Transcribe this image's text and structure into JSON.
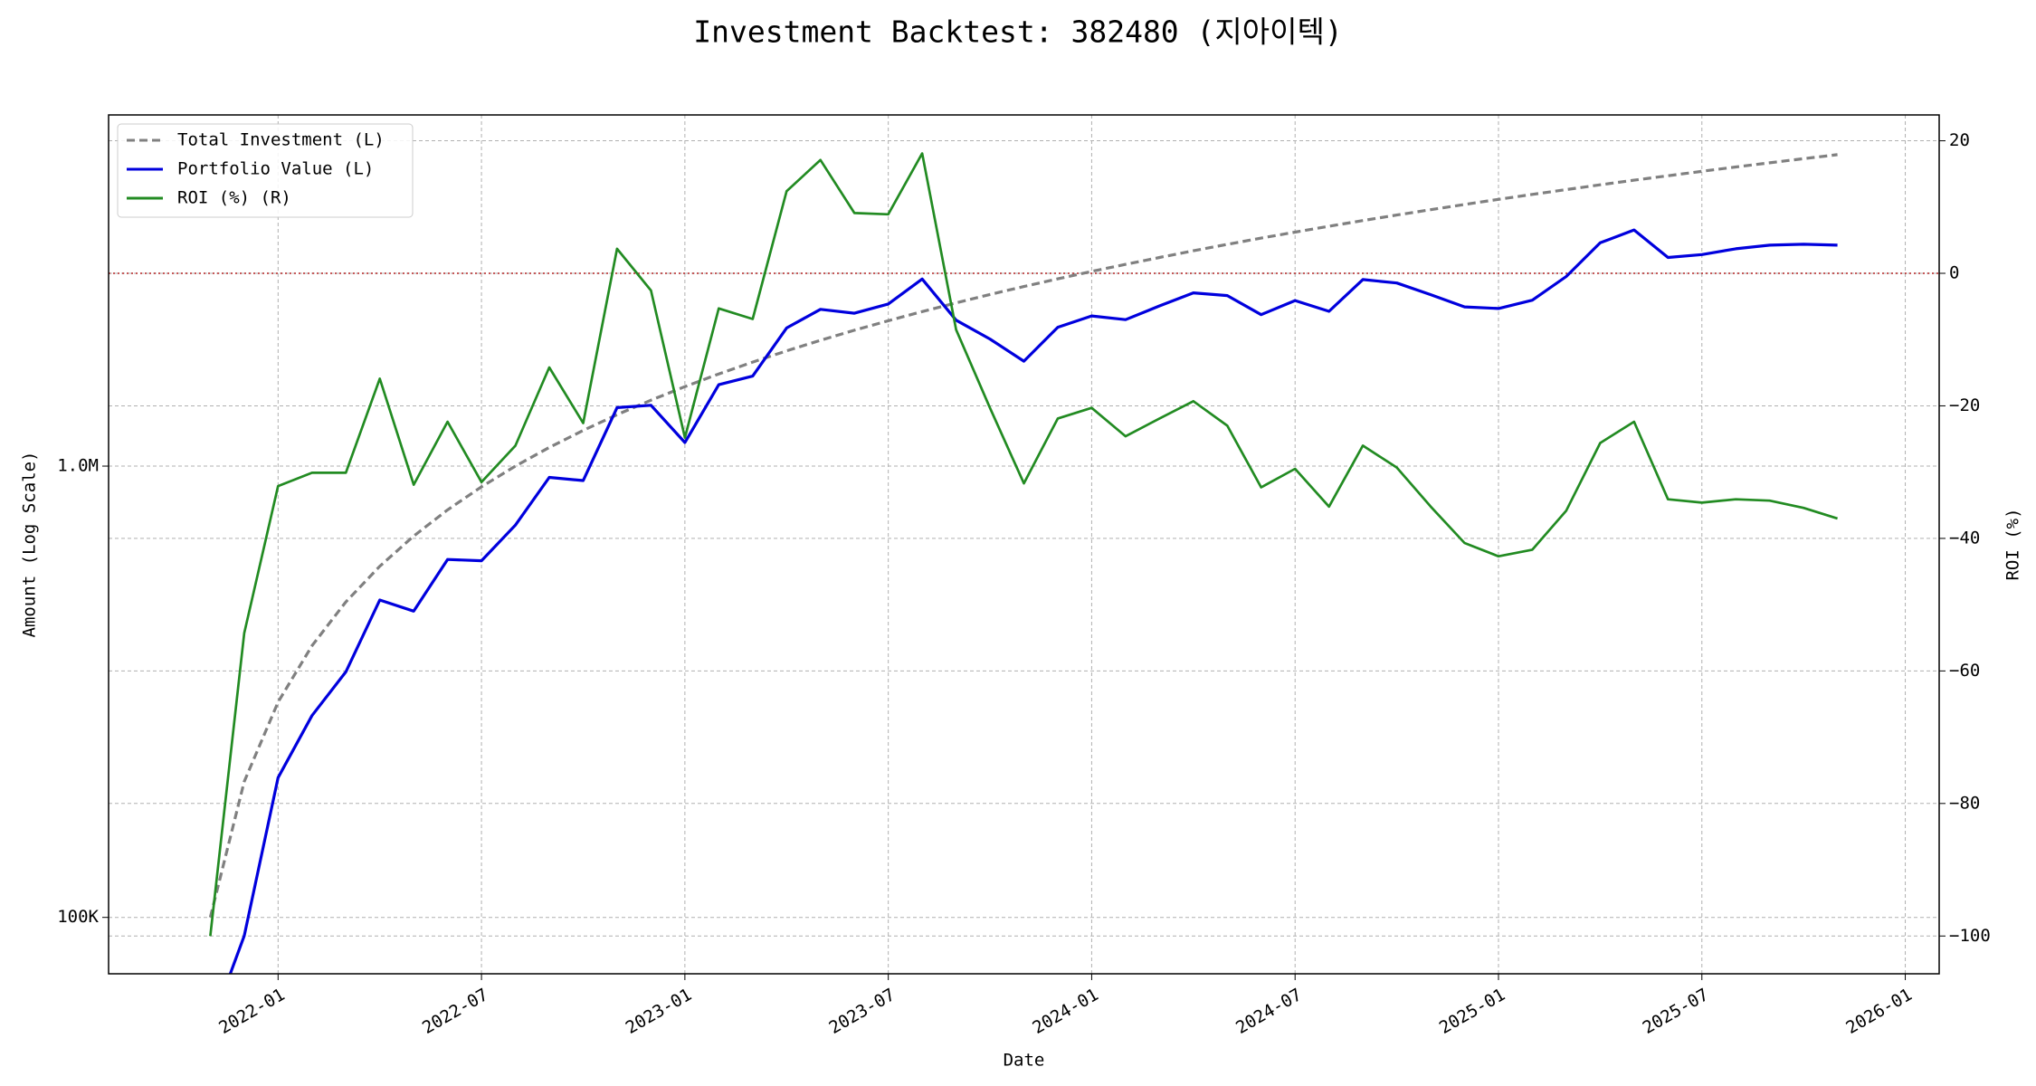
{
  "chart_data": {
    "type": "line",
    "title": "Investment Backtest: 382480 (지아이텍)",
    "xlabel": "Date",
    "ylabel": "Amount (Log Scale)",
    "y2label": "ROI (%)",
    "ylabel_color": "#0000dd",
    "y2label_color": "#228b22",
    "x": [
      "2021-11",
      "2021-12",
      "2022-01",
      "2022-02",
      "2022-03",
      "2022-04",
      "2022-05",
      "2022-06",
      "2022-07",
      "2022-08",
      "2022-09",
      "2022-10",
      "2022-11",
      "2022-12",
      "2023-01",
      "2023-02",
      "2023-03",
      "2023-04",
      "2023-05",
      "2023-06",
      "2023-07",
      "2023-08",
      "2023-09",
      "2023-10",
      "2023-11",
      "2023-12",
      "2024-01",
      "2024-02",
      "2024-03",
      "2024-04",
      "2024-05",
      "2024-06",
      "2024-07",
      "2024-08",
      "2024-09",
      "2024-10",
      "2024-11",
      "2024-12",
      "2025-01",
      "2025-02",
      "2025-03",
      "2025-04",
      "2025-05",
      "2025-06",
      "2025-07",
      "2025-08",
      "2025-09",
      "2025-10",
      "2025-11"
    ],
    "series": [
      {
        "name": "Total Investment (L)",
        "color": "#808080",
        "linestyle": "dashed",
        "axis": "y",
        "values": [
          100000,
          200000,
          300000,
          400000,
          500000,
          600000,
          700000,
          800000,
          900000,
          1000000,
          1100000,
          1200000,
          1300000,
          1400000,
          1500000,
          1600000,
          1700000,
          1800000,
          1900000,
          2000000,
          2100000,
          2200000,
          2300000,
          2400000,
          2500000,
          2600000,
          2700000,
          2800000,
          2900000,
          3000000,
          3100000,
          3200000,
          3300000,
          3400000,
          3500000,
          3600000,
          3700000,
          3800000,
          3900000,
          4000000,
          4100000,
          4200000,
          4300000,
          4400000,
          4500000,
          4600000,
          4700000,
          4800000,
          4900000
        ]
      },
      {
        "name": "Portfolio Value (L)",
        "color": "#0000dd",
        "linestyle": "solid",
        "axis": "y",
        "values": [
          0,
          91000,
          204000,
          280000,
          350000,
          505000,
          477000,
          621000,
          617000,
          740000,
          944000,
          929000,
          1348000,
          1364000,
          1128000,
          1515000,
          1583000,
          2023000,
          2225000,
          2182000,
          2287000,
          2598000,
          2105000,
          1913000,
          1708000,
          2031000,
          2152000,
          2111000,
          2265000,
          2421000,
          2387000,
          2166000,
          2327000,
          2203000,
          2590000,
          2545000,
          2398000,
          2253000,
          2235000,
          2332000,
          2632000,
          3125000,
          3337000,
          2900000,
          2943000,
          3031000,
          3088000,
          3101000,
          3087000
        ]
      },
      {
        "name": "ROI (%) (R)",
        "color": "#228b22",
        "linestyle": "solid",
        "axis": "y2",
        "values": [
          -100,
          -54.3,
          -32.1,
          -30.1,
          -30.1,
          -15.9,
          -31.9,
          -22.4,
          -31.5,
          -26,
          -14.2,
          -22.6,
          3.7,
          -2.6,
          -24.8,
          -5.3,
          -6.9,
          12.4,
          17.1,
          9.1,
          8.9,
          18.1,
          -8.5,
          -20.3,
          -31.7,
          -21.9,
          -20.3,
          -24.6,
          -21.9,
          -19.3,
          -23,
          -32.3,
          -29.5,
          -35.2,
          -26,
          -29.3,
          -35.2,
          -40.7,
          -42.7,
          -41.7,
          -35.8,
          -25.6,
          -22.4,
          -34.1,
          -34.6,
          -34.1,
          -34.3,
          -35.4,
          -37
        ]
      }
    ],
    "xlim": [
      "2021-08",
      "2026-02"
    ],
    "xticks": [
      "2022-01",
      "2022-07",
      "2023-01",
      "2023-07",
      "2024-01",
      "2024-07",
      "2025-01",
      "2025-07",
      "2026-01"
    ],
    "ylim": [
      75000,
      6000000
    ],
    "yscale": "log",
    "yticks": [
      {
        "value": 100000,
        "label": "100K"
      },
      {
        "value": 1000000,
        "label": "1.0M"
      }
    ],
    "y2lim": [
      -105.7,
      23.9
    ],
    "y2ticks": [
      {
        "value": -100,
        "label": "−100"
      },
      {
        "value": -80,
        "label": "−80"
      },
      {
        "value": -60,
        "label": "−60"
      },
      {
        "value": -40,
        "label": "−40"
      },
      {
        "value": -20,
        "label": "−20"
      },
      0,
      20
    ],
    "hline": {
      "value": 0,
      "axis": "y2",
      "color": "#b22222"
    },
    "grid": true,
    "legend": "upper left"
  }
}
